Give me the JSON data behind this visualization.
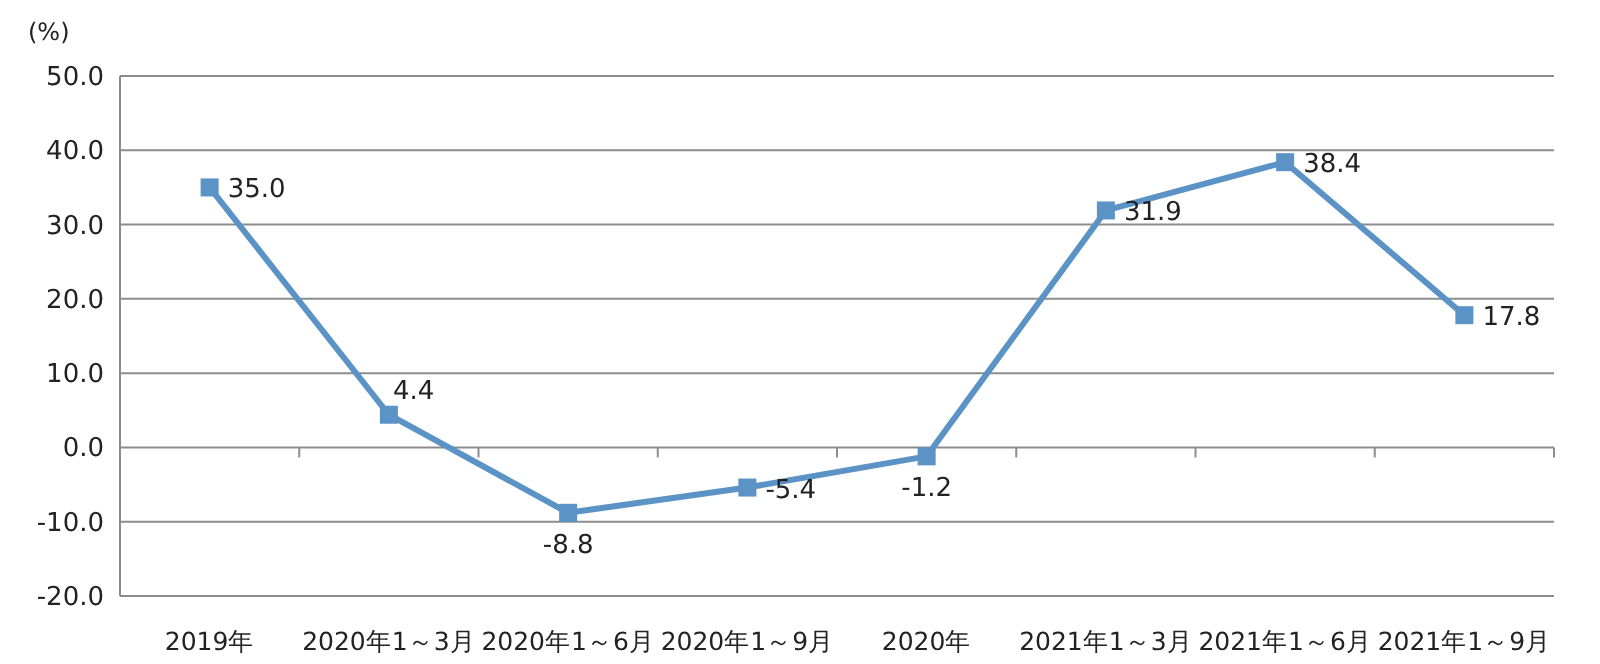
{
  "chart_data": {
    "type": "line",
    "ylabel": "(%)",
    "categories": [
      "2019年",
      "2020年1～3月",
      "2020年1～6月",
      "2020年1～9月",
      "2020年",
      "2021年1～3月",
      "2021年1～6月",
      "2021年1～9月"
    ],
    "series": [
      {
        "color": "#5b93c7",
        "values": [
          35.0,
          4.4,
          -8.8,
          -5.4,
          -1.2,
          31.9,
          38.4,
          17.8
        ],
        "value_labels": [
          "35.0",
          "4.4",
          "-8.8",
          "-5.4",
          "-1.2",
          "31.9",
          "38.4",
          "17.8"
        ]
      }
    ],
    "ylim": [
      -20,
      50
    ],
    "yticks": [
      {
        "value": -20,
        "label": "-20.0"
      },
      {
        "value": -10,
        "label": "-10.0"
      },
      {
        "value": 0,
        "label": "0.0"
      },
      {
        "value": 10,
        "label": "10.0"
      },
      {
        "value": 20,
        "label": "20.0"
      },
      {
        "value": 30,
        "label": "30.0"
      },
      {
        "value": 40,
        "label": "40.0"
      },
      {
        "value": 50,
        "label": "50.0"
      }
    ],
    "grid": "y",
    "marker": "square",
    "line_style": "solid"
  }
}
